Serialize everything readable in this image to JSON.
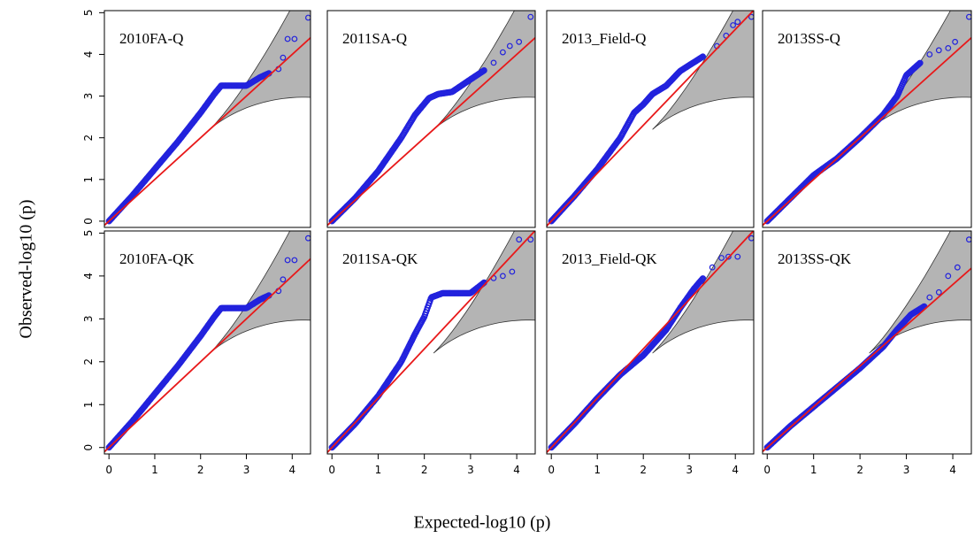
{
  "figure": {
    "xlabel": "Expected-log10 (p)",
    "ylabel": "Observed-log10 (p)"
  },
  "chart_data": [
    {
      "type": "scatter",
      "title": "2010FA-Q",
      "xlim": [
        -0.1,
        4.4
      ],
      "ylim": [
        -0.15,
        5.05
      ],
      "xticks": [
        "0",
        "1",
        "2",
        "3",
        "4"
      ],
      "yticks": [
        "0",
        "1",
        "2",
        "3",
        "4",
        "5"
      ],
      "expected_line": {
        "slope": 1,
        "color": "#e8191a"
      },
      "ci_band_color": "#b4b4b4",
      "curve": [
        [
          0,
          0
        ],
        [
          0.5,
          0.6
        ],
        [
          1,
          1.25
        ],
        [
          1.5,
          1.9
        ],
        [
          2,
          2.6
        ],
        [
          2.3,
          3.05
        ],
        [
          2.45,
          3.25
        ],
        [
          3.0,
          3.25
        ],
        [
          3.3,
          3.45
        ],
        [
          3.5,
          3.55
        ]
      ],
      "outliers": [
        [
          3.7,
          3.65
        ],
        [
          3.8,
          3.92
        ],
        [
          3.9,
          4.37
        ],
        [
          4.05,
          4.37
        ],
        [
          4.35,
          4.88
        ]
      ]
    },
    {
      "type": "scatter",
      "title": "2011SA-Q",
      "xlim": [
        -0.1,
        4.4
      ],
      "ylim": [
        -0.15,
        5.05
      ],
      "xticks": [
        "0",
        "1",
        "2",
        "3",
        "4"
      ],
      "yticks": [
        "0",
        "1",
        "2",
        "3",
        "4",
        "5"
      ],
      "expected_line": {
        "slope": 1,
        "color": "#e8191a"
      },
      "ci_band_color": "#b4b4b4",
      "curve": [
        [
          0,
          0
        ],
        [
          0.5,
          0.55
        ],
        [
          1,
          1.2
        ],
        [
          1.5,
          2.0
        ],
        [
          1.8,
          2.55
        ],
        [
          2.1,
          2.95
        ],
        [
          2.3,
          3.05
        ],
        [
          2.6,
          3.1
        ],
        [
          3.0,
          3.4
        ],
        [
          3.3,
          3.62
        ]
      ],
      "outliers": [
        [
          3.5,
          3.8
        ],
        [
          3.7,
          4.05
        ],
        [
          3.85,
          4.2
        ],
        [
          4.05,
          4.3
        ],
        [
          4.3,
          4.9
        ]
      ]
    },
    {
      "type": "scatter",
      "title": "2013_Field-Q",
      "xlim": [
        -0.1,
        4.4
      ],
      "ylim": [
        -0.15,
        5.05
      ],
      "xticks": [
        "0",
        "1",
        "2",
        "3",
        "4"
      ],
      "yticks": [
        "0",
        "1",
        "2",
        "3",
        "4",
        "5"
      ],
      "expected_line": {
        "slope": 1.15,
        "color": "#e8191a"
      },
      "ci_band_color": "#b4b4b4",
      "curve": [
        [
          0,
          0
        ],
        [
          0.5,
          0.6
        ],
        [
          1,
          1.25
        ],
        [
          1.5,
          2.0
        ],
        [
          1.8,
          2.6
        ],
        [
          2.0,
          2.8
        ],
        [
          2.2,
          3.05
        ],
        [
          2.5,
          3.25
        ],
        [
          2.8,
          3.6
        ],
        [
          3.3,
          3.95
        ]
      ],
      "outliers": [
        [
          3.6,
          4.2
        ],
        [
          3.8,
          4.45
        ],
        [
          3.95,
          4.7
        ],
        [
          4.05,
          4.78
        ],
        [
          4.35,
          4.9
        ]
      ]
    },
    {
      "type": "scatter",
      "title": "2013SS-Q",
      "xlim": [
        -0.1,
        4.4
      ],
      "ylim": [
        -0.15,
        5.05
      ],
      "xticks": [
        "0",
        "1",
        "2",
        "3",
        "4"
      ],
      "yticks": [
        "0",
        "1",
        "2",
        "3",
        "4",
        "5"
      ],
      "expected_line": {
        "slope": 1,
        "color": "#e8191a"
      },
      "ci_band_color": "#b4b4b4",
      "curve": [
        [
          0,
          0
        ],
        [
          0.5,
          0.55
        ],
        [
          1,
          1.1
        ],
        [
          1.5,
          1.5
        ],
        [
          2,
          2.0
        ],
        [
          2.5,
          2.55
        ],
        [
          2.8,
          3.0
        ],
        [
          3.0,
          3.5
        ],
        [
          3.3,
          3.8
        ]
      ],
      "outliers": [
        [
          3.5,
          4.0
        ],
        [
          3.7,
          4.1
        ],
        [
          3.9,
          4.15
        ],
        [
          4.05,
          4.3
        ],
        [
          4.35,
          4.9
        ]
      ]
    },
    {
      "type": "scatter",
      "title": "2010FA-QK",
      "xlim": [
        -0.1,
        4.4
      ],
      "ylim": [
        -0.15,
        5.05
      ],
      "xticks": [
        "0",
        "1",
        "2",
        "3",
        "4"
      ],
      "yticks": [
        "0",
        "1",
        "2",
        "3",
        "4",
        "5"
      ],
      "expected_line": {
        "slope": 1,
        "color": "#e8191a"
      },
      "ci_band_color": "#b4b4b4",
      "curve": [
        [
          0,
          0
        ],
        [
          0.5,
          0.6
        ],
        [
          1,
          1.25
        ],
        [
          1.5,
          1.9
        ],
        [
          2,
          2.6
        ],
        [
          2.3,
          3.05
        ],
        [
          2.45,
          3.25
        ],
        [
          3.0,
          3.25
        ],
        [
          3.3,
          3.45
        ],
        [
          3.5,
          3.55
        ]
      ],
      "outliers": [
        [
          3.7,
          3.65
        ],
        [
          3.8,
          3.92
        ],
        [
          3.9,
          4.37
        ],
        [
          4.05,
          4.37
        ],
        [
          4.35,
          4.88
        ]
      ]
    },
    {
      "type": "scatter",
      "title": "2011SA-QK",
      "xlim": [
        -0.1,
        4.4
      ],
      "ylim": [
        -0.15,
        5.05
      ],
      "xticks": [
        "0",
        "1",
        "2",
        "3",
        "4"
      ],
      "yticks": [
        "0",
        "1",
        "2",
        "3",
        "4",
        "5"
      ],
      "expected_line": {
        "slope": 1.15,
        "color": "#e8191a"
      },
      "ci_band_color": "#b4b4b4",
      "curve": [
        [
          0,
          0
        ],
        [
          0.5,
          0.55
        ],
        [
          1,
          1.2
        ],
        [
          1.5,
          2.0
        ],
        [
          1.8,
          2.65
        ],
        [
          2.0,
          3.05
        ],
        [
          2.15,
          3.5
        ],
        [
          2.4,
          3.6
        ],
        [
          3.0,
          3.6
        ],
        [
          3.3,
          3.85
        ]
      ],
      "outliers": [
        [
          3.5,
          3.95
        ],
        [
          3.7,
          4.0
        ],
        [
          3.9,
          4.1
        ],
        [
          4.05,
          4.85
        ],
        [
          4.3,
          4.85
        ]
      ]
    },
    {
      "type": "scatter",
      "title": "2013_Field-QK",
      "xlim": [
        -0.1,
        4.4
      ],
      "ylim": [
        -0.15,
        5.05
      ],
      "xticks": [
        "0",
        "1",
        "2",
        "3",
        "4"
      ],
      "yticks": [
        "0",
        "1",
        "2",
        "3",
        "4",
        "5"
      ],
      "expected_line": {
        "slope": 1.15,
        "color": "#e8191a"
      },
      "ci_band_color": "#b4b4b4",
      "curve": [
        [
          0,
          0
        ],
        [
          0.5,
          0.55
        ],
        [
          1,
          1.15
        ],
        [
          1.5,
          1.7
        ],
        [
          2,
          2.15
        ],
        [
          2.5,
          2.75
        ],
        [
          2.8,
          3.25
        ],
        [
          3.1,
          3.7
        ],
        [
          3.3,
          3.95
        ]
      ],
      "outliers": [
        [
          3.5,
          4.2
        ],
        [
          3.7,
          4.42
        ],
        [
          3.85,
          4.45
        ],
        [
          4.05,
          4.45
        ],
        [
          4.35,
          4.88
        ]
      ]
    },
    {
      "type": "scatter",
      "title": "2013SS-QK",
      "xlim": [
        -0.1,
        4.4
      ],
      "ylim": [
        -0.15,
        5.05
      ],
      "xticks": [
        "0",
        "1",
        "2",
        "3",
        "4"
      ],
      "yticks": [
        "0",
        "1",
        "2",
        "3",
        "4",
        "5"
      ],
      "expected_line": {
        "slope": 0.95,
        "color": "#e8191a"
      },
      "ci_band_color": "#b4b4b4",
      "curve": [
        [
          0,
          0
        ],
        [
          0.5,
          0.5
        ],
        [
          1,
          0.95
        ],
        [
          1.5,
          1.4
        ],
        [
          2,
          1.85
        ],
        [
          2.5,
          2.35
        ],
        [
          2.8,
          2.75
        ],
        [
          3.1,
          3.1
        ],
        [
          3.4,
          3.3
        ]
      ],
      "outliers": [
        [
          3.5,
          3.5
        ],
        [
          3.7,
          3.62
        ],
        [
          3.9,
          4.0
        ],
        [
          4.1,
          4.2
        ],
        [
          4.35,
          4.85
        ]
      ]
    }
  ]
}
